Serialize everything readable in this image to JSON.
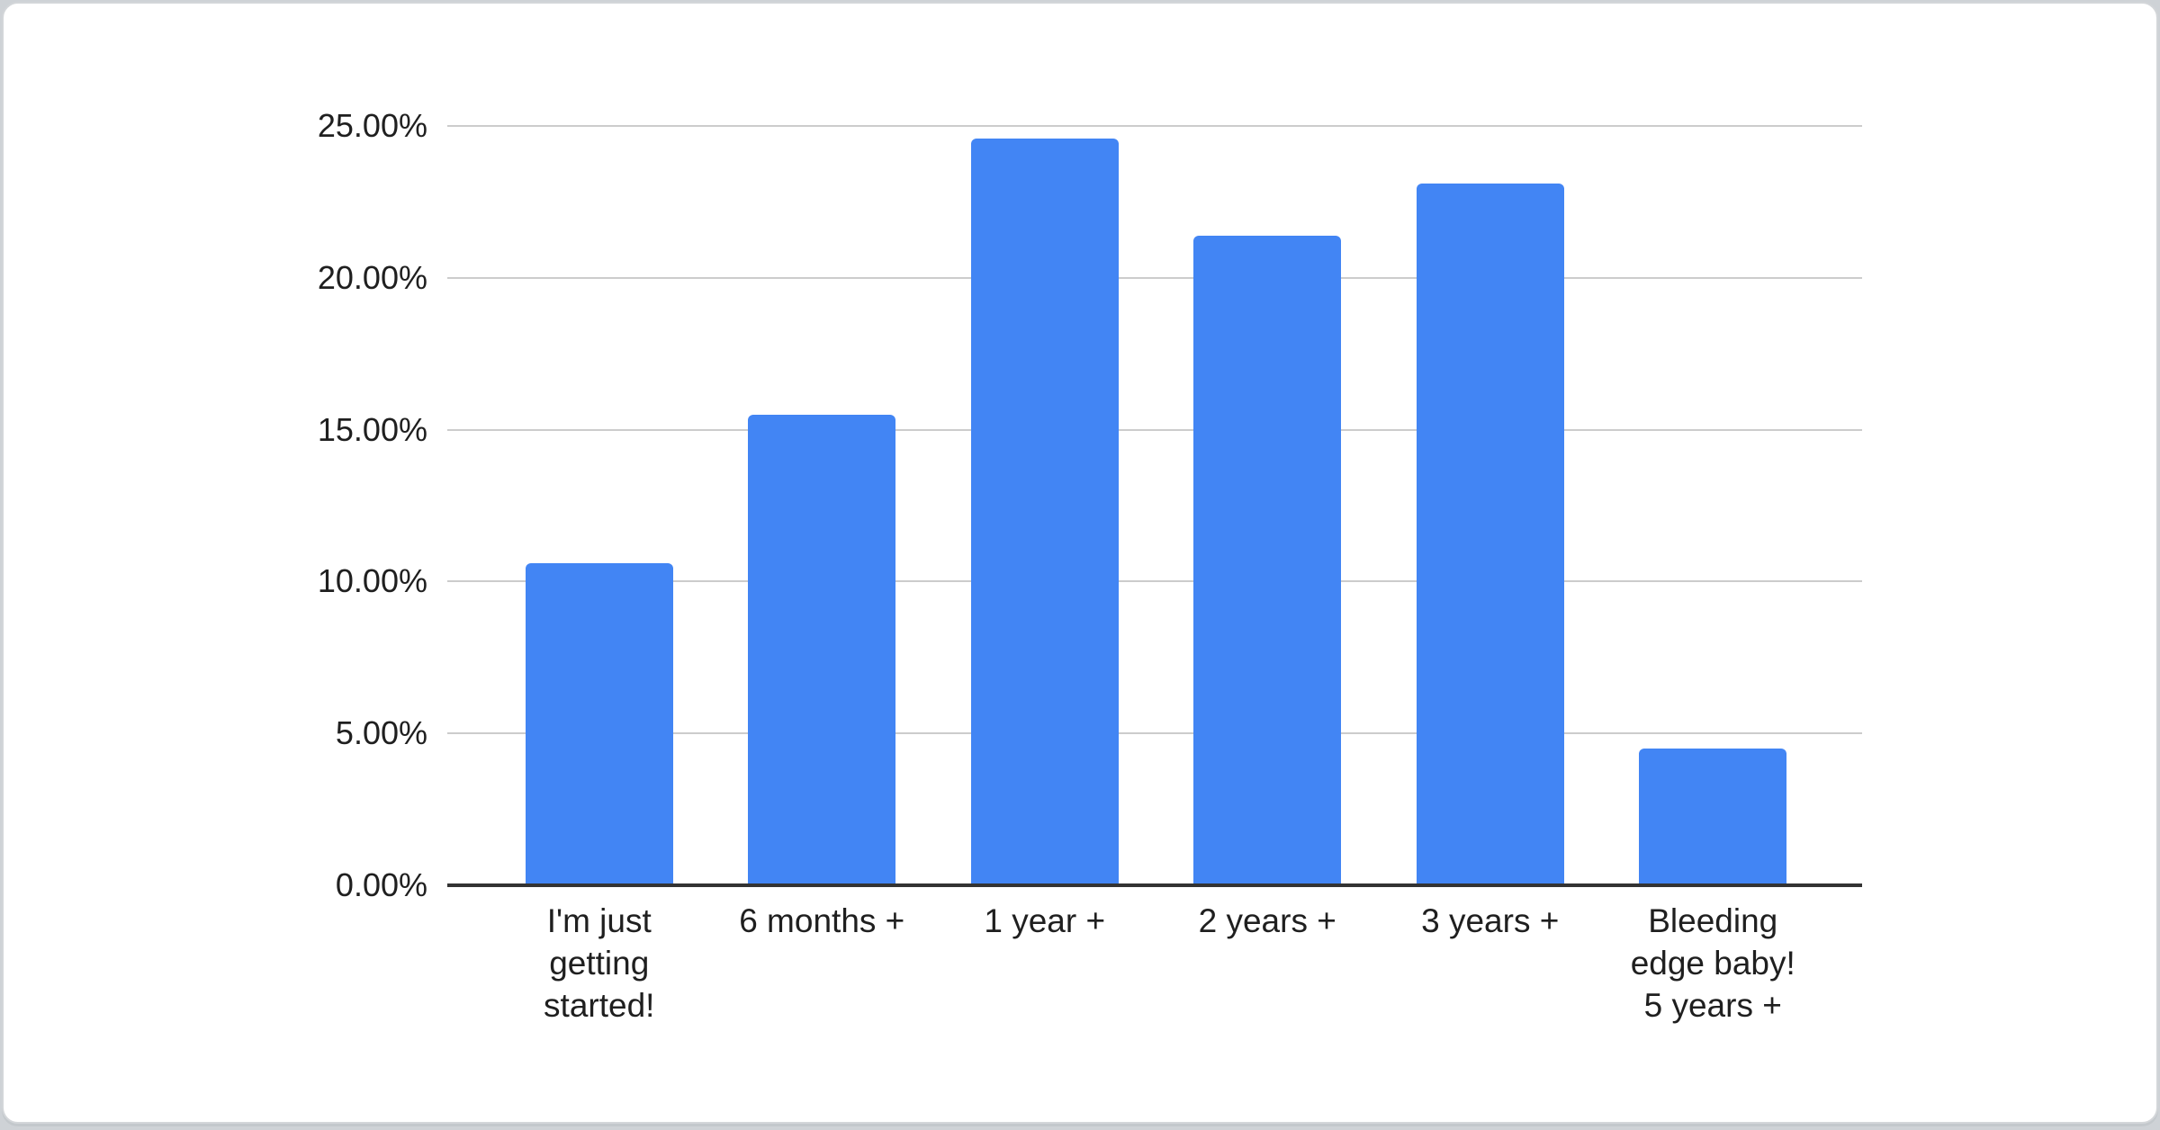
{
  "chart_data": {
    "type": "bar",
    "title": "",
    "xlabel": "",
    "ylabel": "",
    "categories": [
      "I'm just getting started!",
      "6 months +",
      "1 year +",
      "2 years +",
      "3 years +",
      "Bleeding edge baby! 5 years +"
    ],
    "x_tick_display": [
      "I'm just\ngetting\nstarted!",
      "6 months +",
      "1 year +",
      "2 years +",
      "3 years +",
      "Bleeding\nedge baby!\n5 years +"
    ],
    "values": [
      10.6,
      15.5,
      24.6,
      21.4,
      23.1,
      4.5
    ],
    "value_unit": "percent",
    "ylim": [
      0,
      25
    ],
    "ytick_step": 5,
    "ytick_labels": [
      "0.00%",
      "5.00%",
      "10.00%",
      "15.00%",
      "20.00%",
      "25.00%"
    ],
    "grid": true,
    "legend": "none",
    "colors": {
      "bar": "#4285f4",
      "gridline": "#cccccc",
      "axis_line": "#333333",
      "label_text": "#1f1f1f",
      "card_background": "#ffffff",
      "card_border": "#d3d6d9",
      "page_background": "#ced2d6"
    }
  }
}
